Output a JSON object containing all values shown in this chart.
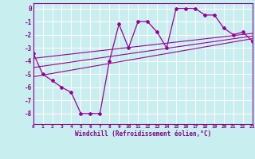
{
  "xlabel": "Windchill (Refroidissement éolien,°C)",
  "background_color": "#c8eef0",
  "grid_color": "#ffffff",
  "line_color": "#990099",
  "x_values": [
    0,
    1,
    2,
    3,
    4,
    5,
    6,
    7,
    8,
    9,
    10,
    11,
    12,
    13,
    14,
    15,
    16,
    17,
    18,
    19,
    20,
    21,
    22,
    23
  ],
  "series1": [
    -3.4,
    -5.0,
    -5.5,
    -6.0,
    -6.4,
    -8.0,
    -8.0,
    -8.0,
    -4.0,
    -1.2,
    -3.0,
    -1.0,
    -1.0,
    -1.8,
    -3.0,
    0.0,
    0.0,
    0.0,
    -0.5,
    -0.5,
    -1.5,
    -2.0,
    -1.8,
    -2.5
  ],
  "trend1_x": [
    0,
    23
  ],
  "trend1_y": [
    -5.2,
    -2.3
  ],
  "trend2_x": [
    0,
    23
  ],
  "trend2_y": [
    -4.5,
    -2.1
  ],
  "trend3_x": [
    0,
    23
  ],
  "trend3_y": [
    -3.8,
    -1.9
  ],
  "ylim": [
    -8.8,
    0.4
  ],
  "xlim": [
    0,
    23
  ],
  "yticks": [
    0,
    -1,
    -2,
    -3,
    -4,
    -5,
    -6,
    -7,
    -8
  ],
  "xticks": [
    0,
    1,
    2,
    3,
    4,
    5,
    6,
    7,
    8,
    9,
    10,
    11,
    12,
    13,
    14,
    15,
    16,
    17,
    18,
    19,
    20,
    21,
    22,
    23
  ]
}
